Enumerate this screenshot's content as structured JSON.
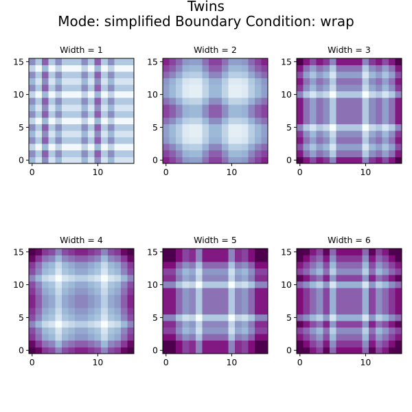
{
  "figure": {
    "title_line1": "Twins",
    "title_line2": "Mode: simplified   Boundary Condition: wrap",
    "colormap": "BuPu",
    "colormap_stops": [
      "#f7fcfd",
      "#e0ecf4",
      "#bfd3e6",
      "#9ebcda",
      "#8c96c6",
      "#8c6bb1",
      "#88419d",
      "#810f7c",
      "#4d004b"
    ]
  },
  "chart_data": [
    {
      "type": "heatmap",
      "title": "Width = 1",
      "xticks": [
        0,
        10
      ],
      "yticks": [
        0,
        5,
        10,
        15
      ],
      "xlim": [
        -0.5,
        15.5
      ],
      "ylim": [
        -0.5,
        15.5
      ],
      "origin": "lower",
      "grid_size": [
        16,
        16
      ],
      "row_profile": [
        0.3,
        0.55,
        0.05,
        0.55,
        0.3,
        0.55,
        0.05,
        0.55,
        0.3,
        0.55,
        0.05,
        0.55,
        0.3,
        0.55,
        0.05,
        0.55
      ],
      "col_profile": [
        0.4,
        0.0,
        0.65,
        0.0,
        0.4,
        0.0,
        0.0,
        0.0,
        0.4,
        0.0,
        0.65,
        0.0,
        0.4,
        0.0,
        0.0,
        0.0
      ]
    },
    {
      "type": "heatmap",
      "title": "Width = 2",
      "xticks": [
        0,
        10
      ],
      "yticks": [
        0,
        5,
        10,
        15
      ],
      "xlim": [
        -0.5,
        15.5
      ],
      "ylim": [
        -0.5,
        15.5
      ],
      "origin": "lower",
      "grid_size": [
        16,
        16
      ],
      "row_profile": [
        0.75,
        0.6,
        0.4,
        0.15,
        0.1,
        0.1,
        0.35,
        0.6,
        0.6,
        0.35,
        0.1,
        0.1,
        0.15,
        0.4,
        0.6,
        0.75
      ],
      "col_profile": [
        0.75,
        0.6,
        0.4,
        0.15,
        0.1,
        0.1,
        0.35,
        0.6,
        0.6,
        0.35,
        0.1,
        0.1,
        0.15,
        0.4,
        0.6,
        0.75
      ]
    },
    {
      "type": "heatmap",
      "title": "Width = 3",
      "xticks": [
        0,
        10
      ],
      "yticks": [
        0,
        5,
        10,
        15
      ],
      "xlim": [
        -0.5,
        15.5
      ],
      "ylim": [
        -0.5,
        15.5
      ],
      "origin": "lower",
      "grid_size": [
        16,
        16
      ],
      "row_profile": [
        1.0,
        0.55,
        0.3,
        0.55,
        0.4,
        0.0,
        0.55,
        0.55,
        0.55,
        0.55,
        0.0,
        0.4,
        0.55,
        0.3,
        0.55,
        1.0
      ],
      "col_profile": [
        1.0,
        0.55,
        0.3,
        0.55,
        0.4,
        0.0,
        0.55,
        0.55,
        0.55,
        0.55,
        0.0,
        0.4,
        0.55,
        0.3,
        0.55,
        1.0
      ]
    },
    {
      "type": "heatmap",
      "title": "Width = 4",
      "xticks": [
        0,
        10
      ],
      "yticks": [
        0,
        5,
        10,
        15
      ],
      "xlim": [
        -0.5,
        15.5
      ],
      "ylim": [
        -0.5,
        15.5
      ],
      "origin": "lower",
      "grid_size": [
        16,
        16
      ],
      "row_profile": [
        1.0,
        0.7,
        0.4,
        0.3,
        0.0,
        0.3,
        0.4,
        0.5,
        0.5,
        0.4,
        0.3,
        0.0,
        0.3,
        0.4,
        0.7,
        1.0
      ],
      "col_profile": [
        1.0,
        0.7,
        0.4,
        0.3,
        0.0,
        0.3,
        0.4,
        0.5,
        0.5,
        0.4,
        0.3,
        0.0,
        0.3,
        0.4,
        0.7,
        1.0
      ]
    },
    {
      "type": "heatmap",
      "title": "Width = 5",
      "xticks": [
        0,
        10
      ],
      "yticks": [
        0,
        5,
        10,
        15
      ],
      "xlim": [
        -0.5,
        15.5
      ],
      "ylim": [
        -0.5,
        15.5
      ],
      "origin": "lower",
      "grid_size": [
        16,
        16
      ],
      "row_profile": [
        1.0,
        1.0,
        0.6,
        0.35,
        0.45,
        0.0,
        0.55,
        0.55,
        0.55,
        0.55,
        0.0,
        0.45,
        0.35,
        0.6,
        1.0,
        1.0
      ],
      "col_profile": [
        1.0,
        1.0,
        0.6,
        0.35,
        0.45,
        0.0,
        0.55,
        0.55,
        0.55,
        0.55,
        0.0,
        0.45,
        0.35,
        0.6,
        1.0,
        1.0
      ]
    },
    {
      "type": "heatmap",
      "title": "Width = 6",
      "xticks": [
        0,
        10
      ],
      "yticks": [
        0,
        5,
        10,
        15
      ],
      "xlim": [
        -0.5,
        15.5
      ],
      "ylim": [
        -0.5,
        15.5
      ],
      "origin": "lower",
      "grid_size": [
        16,
        16
      ],
      "row_profile": [
        1.0,
        0.8,
        0.55,
        0.35,
        0.75,
        0.15,
        0.6,
        0.6,
        0.6,
        0.6,
        0.15,
        0.75,
        0.35,
        0.55,
        0.8,
        1.0
      ],
      "col_profile": [
        1.0,
        0.8,
        0.55,
        0.35,
        0.75,
        0.15,
        0.6,
        0.6,
        0.6,
        0.6,
        0.15,
        0.75,
        0.35,
        0.55,
        0.8,
        1.0
      ]
    }
  ]
}
